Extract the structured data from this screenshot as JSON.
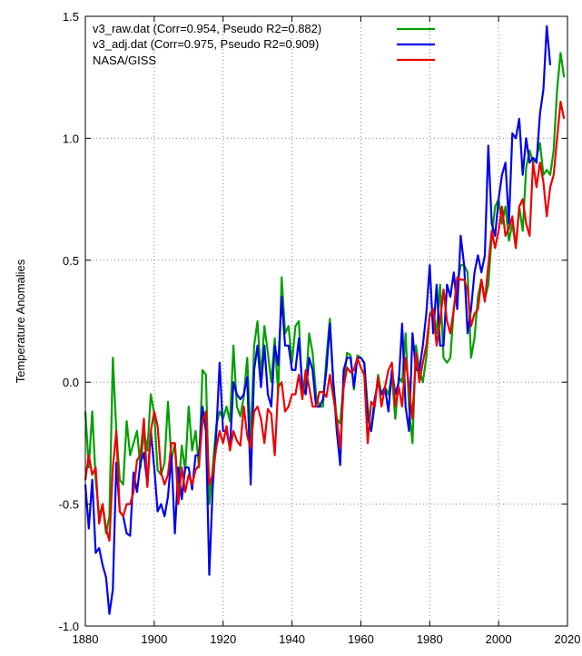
{
  "chart_data": {
    "type": "line",
    "ylabel": "Temperature Anomalies",
    "xlabel": "",
    "xlim": [
      1880,
      2020
    ],
    "ylim": [
      -1.0,
      1.5
    ],
    "x_ticks": [
      1880,
      1900,
      1920,
      1940,
      1960,
      1980,
      2000,
      2020
    ],
    "y_ticks": [
      -1.0,
      -0.5,
      0.0,
      0.5,
      1.0,
      1.5
    ],
    "grid": true,
    "legend_position": "top-left",
    "x_start": 1880,
    "series": [
      {
        "name": "v3_raw.dat (Corr=0.954,  Pseudo R2=0.882)",
        "color": "#00a000",
        "values": [
          -0.12,
          -0.35,
          -0.12,
          -0.4,
          -0.55,
          -0.5,
          -0.62,
          -0.55,
          0.1,
          -0.2,
          -0.4,
          -0.42,
          -0.16,
          -0.3,
          -0.25,
          -0.2,
          -0.35,
          -0.2,
          -0.28,
          -0.05,
          -0.13,
          -0.36,
          -0.38,
          -0.33,
          -0.08,
          -0.32,
          -0.25,
          -0.45,
          -0.26,
          -0.36,
          -0.1,
          -0.28,
          -0.2,
          -0.35,
          0.05,
          0.03,
          -0.5,
          -0.35,
          -0.18,
          -0.12,
          -0.15,
          -0.1,
          -0.16,
          0.15,
          -0.1,
          -0.14,
          -0.06,
          0.1,
          -0.25,
          0.15,
          0.25,
          0.02,
          0.23,
          0.12,
          0.0,
          0.18,
          -0.05,
          0.43,
          0.2,
          0.23,
          0.08,
          0.23,
          0.25,
          -0.05,
          -0.02,
          0.2,
          0.12,
          -0.05,
          -0.1,
          -0.1,
          0.1,
          0.26,
          0.0,
          -0.15,
          -0.17,
          0.0,
          0.12,
          0.11,
          -0.03,
          0.11,
          0.1,
          0.08,
          -0.1,
          -0.2,
          -0.1,
          0.03,
          -0.05,
          -0.02,
          -0.05,
          0.03,
          -0.15,
          0.02,
          0.0,
          0.2,
          -0.1,
          -0.25,
          0.15,
          0.05,
          0.0,
          0.1,
          0.28,
          0.3,
          0.2,
          0.4,
          0.1,
          0.08,
          0.1,
          0.3,
          0.4,
          0.48,
          0.48,
          0.45,
          0.1,
          0.18,
          0.35,
          0.42,
          0.34,
          0.4,
          0.6,
          0.72,
          0.75,
          0.65,
          0.72,
          0.58,
          0.65,
          0.55,
          0.72,
          0.62,
          0.88,
          0.95,
          0.9,
          0.92,
          0.98,
          0.85,
          0.87,
          0.85,
          0.95,
          1.2,
          1.35,
          1.25
        ]
      },
      {
        "name": "v3_adj.dat (Corr=0.975,  Pseudo R2=0.909)",
        "color": "#0000ee",
        "values": [
          -0.42,
          -0.6,
          -0.4,
          -0.7,
          -0.68,
          -0.75,
          -0.8,
          -0.95,
          -0.85,
          -0.33,
          -0.53,
          -0.55,
          -0.62,
          -0.63,
          -0.37,
          -0.45,
          -0.33,
          -0.29,
          -0.42,
          -0.2,
          -0.35,
          -0.53,
          -0.5,
          -0.55,
          -0.47,
          -0.3,
          -0.62,
          -0.35,
          -0.48,
          -0.35,
          -0.35,
          -0.44,
          -0.3,
          -0.3,
          -0.1,
          -0.2,
          -0.79,
          -0.43,
          -0.22,
          0.08,
          -0.2,
          -0.2,
          -0.27,
          0.0,
          -0.05,
          -0.07,
          -0.05,
          0.02,
          -0.42,
          0.05,
          0.15,
          -0.02,
          0.15,
          -0.05,
          -0.1,
          0.15,
          0.07,
          0.35,
          0.15,
          0.15,
          0.05,
          0.05,
          0.18,
          -0.02,
          -0.05,
          0.1,
          0.05,
          -0.1,
          -0.1,
          -0.07,
          0.05,
          0.24,
          0.0,
          -0.2,
          -0.34,
          0.05,
          0.1,
          0.1,
          -0.02,
          0.1,
          0.1,
          0.08,
          -0.15,
          -0.2,
          -0.07,
          0.0,
          -0.05,
          -0.02,
          -0.12,
          0.05,
          -0.05,
          0.0,
          0.24,
          -0.1,
          -0.2,
          0.2,
          0.05,
          0.05,
          0.15,
          0.28,
          0.48,
          0.2,
          0.4,
          0.15,
          0.15,
          0.4,
          0.35,
          0.45,
          0.3,
          0.6,
          0.48,
          0.2,
          0.3,
          0.45,
          0.52,
          0.45,
          0.52,
          0.97,
          0.65,
          0.6,
          0.75,
          0.85,
          0.9,
          0.65,
          1.02,
          1.0,
          1.08,
          0.85,
          1.0,
          0.9,
          0.92,
          0.9,
          1.1,
          1.2,
          1.46,
          1.3
        ]
      },
      {
        "name": "NASA/GISS",
        "color": "#ee0000",
        "values": [
          -0.4,
          -0.3,
          -0.38,
          -0.35,
          -0.58,
          -0.5,
          -0.6,
          -0.65,
          -0.35,
          -0.2,
          -0.53,
          -0.55,
          -0.5,
          -0.5,
          -0.45,
          -0.32,
          -0.3,
          -0.15,
          -0.43,
          -0.2,
          -0.12,
          -0.18,
          -0.37,
          -0.42,
          -0.38,
          -0.25,
          -0.25,
          -0.5,
          -0.35,
          -0.45,
          -0.38,
          -0.42,
          -0.36,
          -0.34,
          -0.16,
          -0.12,
          -0.42,
          -0.38,
          -0.27,
          -0.2,
          -0.25,
          -0.18,
          -0.28,
          -0.2,
          -0.24,
          -0.26,
          -0.1,
          -0.22,
          -0.27,
          -0.12,
          -0.1,
          -0.15,
          -0.25,
          -0.11,
          -0.13,
          -0.3,
          -0.02,
          0.0,
          -0.12,
          -0.1,
          -0.05,
          -0.05,
          0.03,
          -0.07,
          0.05,
          -0.02,
          -0.1,
          -0.1,
          -0.04,
          -0.04,
          -0.06,
          0.03,
          -0.06,
          -0.15,
          -0.27,
          -0.02,
          0.06,
          0.04,
          0.05,
          0.1,
          0.06,
          0.03,
          -0.25,
          -0.08,
          -0.1,
          0.02,
          -0.1,
          -0.02,
          0.05,
          0.08,
          -0.1,
          -0.02,
          -0.1,
          0.1,
          -0.02,
          -0.15,
          0.12,
          0.0,
          0.08,
          0.15,
          0.27,
          0.3,
          0.15,
          0.25,
          0.38,
          0.25,
          0.2,
          0.3,
          0.43,
          0.42,
          0.42,
          0.38,
          0.23,
          0.28,
          0.3,
          0.42,
          0.33,
          0.48,
          0.62,
          0.55,
          0.62,
          0.72,
          0.6,
          0.63,
          0.68,
          0.55,
          0.72,
          0.75,
          0.65,
          0.6,
          0.9,
          0.8,
          0.9,
          0.82,
          0.68,
          0.8,
          0.85,
          1.0,
          1.15,
          1.08
        ]
      }
    ]
  }
}
